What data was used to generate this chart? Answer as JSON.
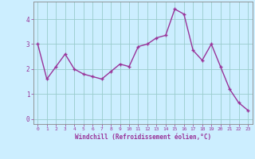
{
  "x": [
    0,
    1,
    2,
    3,
    4,
    5,
    6,
    7,
    8,
    9,
    10,
    11,
    12,
    13,
    14,
    15,
    16,
    17,
    18,
    19,
    20,
    21,
    22,
    23
  ],
  "y": [
    3.0,
    1.6,
    2.1,
    2.6,
    2.0,
    1.8,
    1.7,
    1.6,
    1.9,
    2.2,
    2.1,
    2.9,
    3.0,
    3.25,
    3.35,
    4.4,
    4.2,
    2.75,
    2.35,
    3.0,
    2.1,
    1.2,
    0.65,
    0.35
  ],
  "line_color": "#993399",
  "marker": "+",
  "background_color": "#cceeff",
  "grid_color": "#99cccc",
  "xlabel": "Windchill (Refroidissement éolien,°C)",
  "xlabel_color": "#993399",
  "tick_color": "#993399",
  "ylim": [
    -0.2,
    4.7
  ],
  "xlim": [
    -0.5,
    23.5
  ],
  "yticks": [
    0,
    1,
    2,
    3,
    4
  ],
  "xticks": [
    0,
    1,
    2,
    3,
    4,
    5,
    6,
    7,
    8,
    9,
    10,
    11,
    12,
    13,
    14,
    15,
    16,
    17,
    18,
    19,
    20,
    21,
    22,
    23
  ],
  "figsize": [
    3.2,
    2.0
  ],
  "dpi": 100,
  "linewidth": 1.0,
  "markersize": 3.5,
  "markeredgewidth": 1.0
}
